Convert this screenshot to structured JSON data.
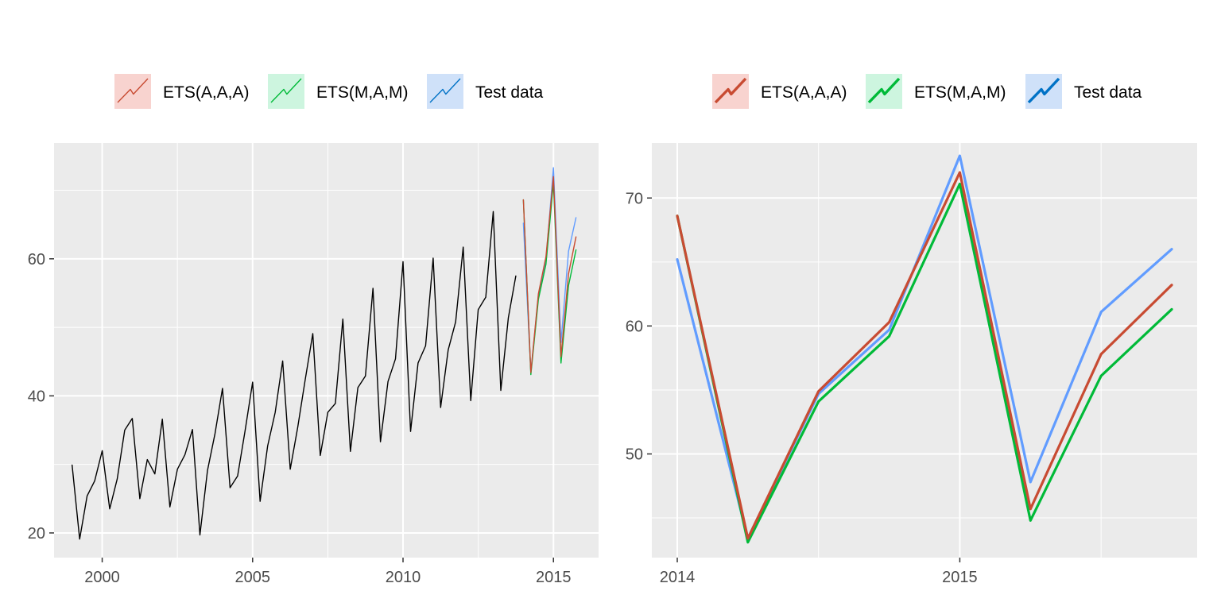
{
  "chart_data": [
    {
      "type": "line",
      "legend_position": "top",
      "legend": [
        "ETS(A,A,A)",
        "ETS(M,A,M)",
        "Test data"
      ],
      "xlim": [
        1998.4,
        2016.5
      ],
      "ylim": [
        16.4,
        76.9
      ],
      "x_ticks": [
        "2000",
        "2005",
        "2010",
        "2015"
      ],
      "y_ticks": [
        "20",
        "40",
        "60"
      ],
      "grid": true,
      "series": [
        {
          "color": "#000000",
          "x": [
            1999.0,
            1999.25,
            1999.5,
            1999.75,
            2000.0,
            2000.25,
            2000.5,
            2000.75,
            2001.0,
            2001.25,
            2001.5,
            2001.75,
            2002.0,
            2002.25,
            2002.5,
            2002.75,
            2003.0,
            2003.25,
            2003.5,
            2003.75,
            2004.0,
            2004.25,
            2004.5,
            2004.75,
            2005.0,
            2005.25,
            2005.5,
            2005.75,
            2006.0,
            2006.25,
            2006.5,
            2006.75,
            2007.0,
            2007.25,
            2007.5,
            2007.75,
            2008.0,
            2008.25,
            2008.5,
            2008.75,
            2009.0,
            2009.25,
            2009.5,
            2009.75,
            2010.0,
            2010.25,
            2010.5,
            2010.75,
            2011.0,
            2011.25,
            2011.5,
            2011.75,
            2012.0,
            2012.25,
            2012.5,
            2012.75,
            2013.0,
            2013.25,
            2013.5,
            2013.75
          ],
          "y": [
            29.9,
            19.1,
            25.4,
            27.6,
            32.0,
            23.5,
            27.9,
            35.0,
            36.7,
            25.0,
            30.7,
            28.6,
            36.6,
            23.8,
            29.3,
            31.4,
            35.1,
            19.7,
            29.1,
            34.5,
            41.1,
            26.6,
            28.3,
            34.9,
            42.0,
            24.6,
            32.7,
            37.6,
            45.1,
            29.3,
            35.4,
            42.4,
            49.1,
            31.3,
            37.6,
            38.9,
            51.2,
            31.9,
            41.2,
            42.9,
            55.7,
            33.3,
            42.1,
            45.4,
            59.6,
            34.8,
            44.8,
            47.3,
            60.1,
            38.3,
            46.7,
            50.8,
            61.7,
            39.3,
            52.6,
            54.4,
            66.9,
            40.8,
            51.4,
            57.5
          ]
        },
        {
          "name": "Test data",
          "color": "#619cff",
          "x": [
            2014.0,
            2014.25,
            2014.5,
            2014.75,
            2015.0,
            2015.25,
            2015.5,
            2015.75
          ],
          "y": [
            65.2,
            43.4,
            54.7,
            59.7,
            73.3,
            47.8,
            61.1,
            66.0
          ]
        },
        {
          "name": "ETS(M,A,M)",
          "color": "#00ba38",
          "x": [
            2014.0,
            2014.25,
            2014.5,
            2014.75,
            2015.0,
            2015.25,
            2015.5,
            2015.75
          ],
          "y": [
            68.6,
            43.1,
            54.1,
            59.2,
            71.1,
            44.8,
            56.1,
            61.3
          ]
        },
        {
          "name": "ETS(A,A,A)",
          "color": "#c84b32",
          "x": [
            2014.0,
            2014.25,
            2014.5,
            2014.75,
            2015.0,
            2015.25,
            2015.5,
            2015.75
          ],
          "y": [
            68.6,
            43.4,
            54.9,
            60.3,
            72.0,
            45.7,
            57.8,
            63.2
          ]
        }
      ]
    },
    {
      "type": "line",
      "legend_position": "top",
      "legend": [
        "ETS(A,A,A)",
        "ETS(M,A,M)",
        "Test data"
      ],
      "xlim": [
        2013.91,
        2015.84
      ],
      "ylim": [
        41.9,
        74.3
      ],
      "x_ticks": [
        "2014",
        "2015"
      ],
      "y_ticks": [
        "50",
        "60",
        "70"
      ],
      "grid": true,
      "series": [
        {
          "name": "Test data",
          "color": "#619cff",
          "x": [
            2014.0,
            2014.25,
            2014.5,
            2014.75,
            2015.0,
            2015.25,
            2015.5,
            2015.75
          ],
          "y": [
            65.2,
            43.4,
            54.7,
            59.7,
            73.3,
            47.8,
            61.1,
            66.0
          ]
        },
        {
          "name": "ETS(M,A,M)",
          "color": "#00ba38",
          "x": [
            2014.0,
            2014.25,
            2014.5,
            2014.75,
            2015.0,
            2015.25,
            2015.5,
            2015.75
          ],
          "y": [
            68.6,
            43.1,
            54.1,
            59.2,
            71.1,
            44.8,
            56.1,
            61.3
          ]
        },
        {
          "name": "ETS(A,A,A)",
          "color": "#c84b32",
          "x": [
            2014.0,
            2014.25,
            2014.5,
            2014.75,
            2015.0,
            2015.25,
            2015.5,
            2015.75
          ],
          "y": [
            68.6,
            43.4,
            54.9,
            60.3,
            72.0,
            45.7,
            57.8,
            63.2
          ]
        }
      ]
    }
  ],
  "legend_keys": [
    {
      "label": "ETS(A,A,A)",
      "fill": "#f8d3cf",
      "stroke": "#c84b32"
    },
    {
      "label": "ETS(M,A,M)",
      "fill": "#cdf5df",
      "stroke": "#00ba38"
    },
    {
      "label": "Test data",
      "fill": "#cfe1f9",
      "stroke": "#0072c6"
    }
  ],
  "colors": {
    "panel_background": "#ebebeb",
    "grid_major": "#ffffff",
    "tick_text": "#4d4d4d"
  }
}
